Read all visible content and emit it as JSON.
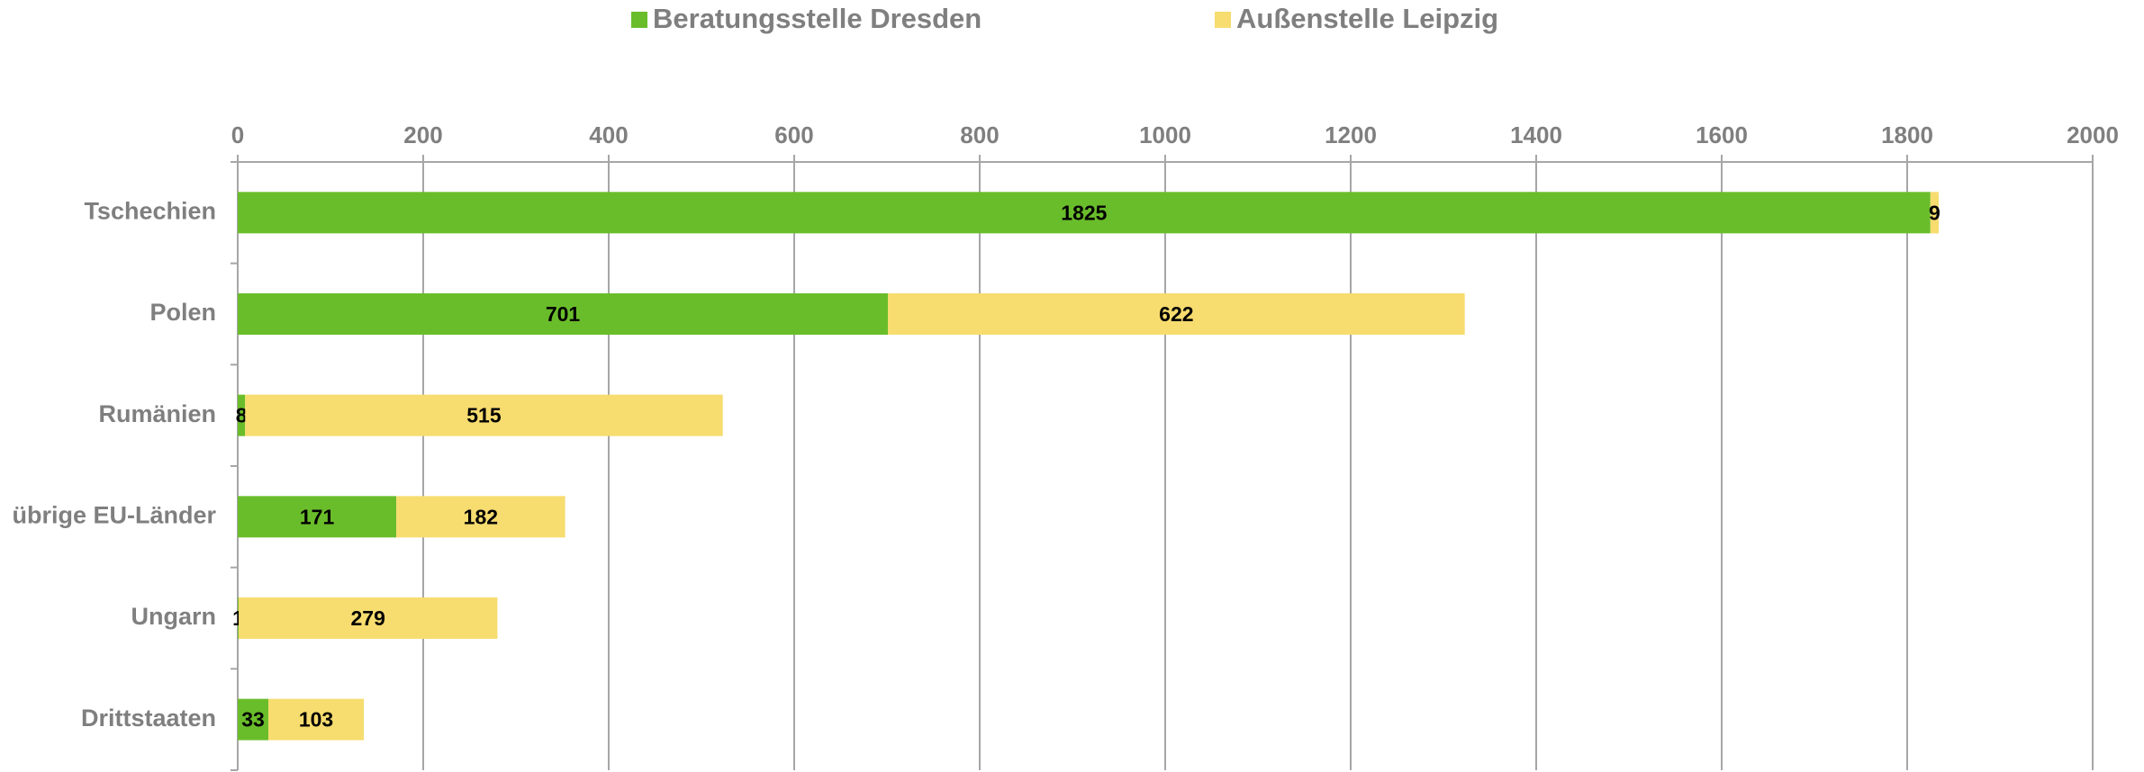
{
  "chart_data": {
    "type": "bar",
    "orientation": "horizontal",
    "stacked": true,
    "categories": [
      "Tschechien",
      "Polen",
      "Rumänien",
      "übrige EU-Länder",
      "Ungarn",
      "Drittstaaten"
    ],
    "series": [
      {
        "name": "Beratungsstelle Dresden",
        "color": "#6abd2a",
        "values": [
          1825,
          701,
          8,
          171,
          1,
          33
        ]
      },
      {
        "name": "Außenstelle Leipzig",
        "color": "#f7dc6f",
        "values": [
          9,
          622,
          515,
          182,
          279,
          103
        ]
      }
    ],
    "xlim": [
      0,
      2000
    ],
    "xticks": [
      0,
      200,
      400,
      600,
      800,
      1000,
      1200,
      1400,
      1600,
      1800,
      2000
    ],
    "grid": true,
    "legend": "top"
  }
}
